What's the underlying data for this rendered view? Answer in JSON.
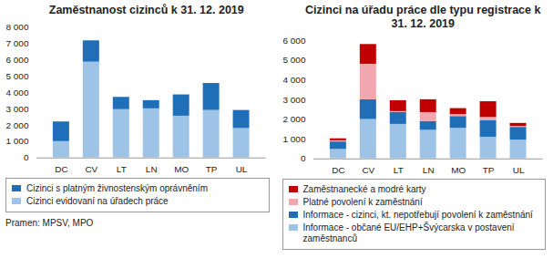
{
  "chart_data": [
    {
      "type": "bar",
      "stacked": true,
      "grid": false,
      "title": "Zaměstnanost cizinců k 31. 12. 2019",
      "categories": [
        "DC",
        "CV",
        "LT",
        "LN",
        "MO",
        "TP",
        "UL"
      ],
      "series": [
        {
          "name": "Cizinci evidovaní na úřadech práce",
          "color": "#9dc3e6",
          "values": [
            1000,
            5850,
            2950,
            3000,
            2550,
            2900,
            1800
          ]
        },
        {
          "name": "Cizinci s platným živnostenským oprávněním",
          "color": "#1f6fb8",
          "values": [
            1200,
            1300,
            750,
            500,
            1300,
            1650,
            1100
          ]
        }
      ],
      "ylim": [
        0,
        8000
      ],
      "yticks": [
        0,
        {
          "value": 1000,
          "label": "1 000"
        },
        {
          "value": 2000,
          "label": "2 000"
        },
        {
          "value": 3000,
          "label": "3 000"
        },
        {
          "value": 4000,
          "label": "4 000"
        },
        {
          "value": 5000,
          "label": "5 000"
        },
        {
          "value": 6000,
          "label": "6 000"
        },
        {
          "value": 7000,
          "label": "7 000"
        },
        {
          "value": 8000,
          "label": "8 000"
        }
      ]
    },
    {
      "type": "bar",
      "stacked": true,
      "grid": false,
      "title": "Cizinci na úřadu práce dle typu registrace k 31. 12. 2019",
      "categories": [
        "DC",
        "CV",
        "LT",
        "LN",
        "MO",
        "TP",
        "UL"
      ],
      "series": [
        {
          "name": "Informace - občané EU/EHP+Švýcarska v postavení zaměstnanců",
          "color": "#9dc3e6",
          "values": [
            480,
            2000,
            1750,
            1450,
            1550,
            1100,
            950
          ]
        },
        {
          "name": "Informace - cizinci, kt. nepotřebují povolení k zaměstnání",
          "color": "#1f6fb8",
          "values": [
            380,
            1000,
            600,
            450,
            600,
            850,
            650
          ]
        },
        {
          "name": "Platné povolení k zaměstnání",
          "color": "#f2a6b0",
          "values": [
            60,
            1800,
            50,
            450,
            100,
            150,
            50
          ]
        },
        {
          "name": "Zaměstnanecké a modré karty",
          "color": "#c00000",
          "values": [
            100,
            1000,
            550,
            650,
            300,
            800,
            150
          ]
        }
      ],
      "ylim": [
        0,
        6000
      ],
      "yticks": [
        0,
        {
          "value": 1000,
          "label": "1 000"
        },
        {
          "value": 2000,
          "label": "2 000"
        },
        {
          "value": 3000,
          "label": "3 000"
        },
        {
          "value": 4000,
          "label": "4 000"
        },
        {
          "value": 5000,
          "label": "5 000"
        },
        {
          "value": 6000,
          "label": "6 000"
        }
      ]
    }
  ],
  "source": "Pramen: MPSV, MPO"
}
